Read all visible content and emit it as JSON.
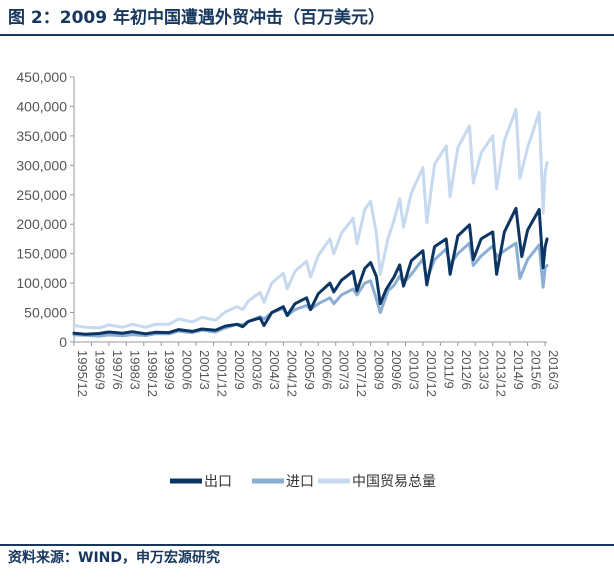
{
  "header": {
    "title": "图 2：2009 年初中国遭遇外贸冲击（百万美元）"
  },
  "footer": {
    "source": "资料来源：WIND，申万宏源研究"
  },
  "colors": {
    "export": "#0d3563",
    "import": "#8aaed4",
    "total": "#c6d9ee",
    "rule": "#17375e"
  },
  "chart_data": {
    "type": "line",
    "title": "2009 年初中国遭遇外贸冲击（百万美元）",
    "xlabel": "",
    "ylabel": "",
    "ylim": [
      0,
      450000
    ],
    "yticks": [
      0,
      50000,
      100000,
      150000,
      200000,
      250000,
      300000,
      350000,
      400000,
      450000
    ],
    "ytick_labels": [
      "0",
      "50,000",
      "100,000",
      "150,000",
      "200,000",
      "250,000",
      "300,000",
      "350,000",
      "400,000",
      "450,000"
    ],
    "x_start": "1995/12",
    "x_end": "2016/4",
    "xtick_labels": [
      "1995/12",
      "1996/9",
      "1997/6",
      "1998/3",
      "1998/12",
      "1999/9",
      "2000/6",
      "2001/3",
      "2001/12",
      "2002/9",
      "2003/6",
      "2004/3",
      "2004/12",
      "2005/9",
      "2006/6",
      "2007/3",
      "2007/12",
      "2008/9",
      "2009/6",
      "2010/3",
      "2010/12",
      "2011/9",
      "2012/6",
      "2013/3",
      "2013/12",
      "2014/9",
      "2015/6",
      "2016/3"
    ],
    "grid": false,
    "legend_position": "bottom",
    "series": [
      {
        "name": "出口",
        "key": "export",
        "points": [
          [
            "1995/12",
            15000
          ],
          [
            "1996/6",
            13000
          ],
          [
            "1997/1",
            14500
          ],
          [
            "1997/6",
            17000
          ],
          [
            "1998/1",
            15000
          ],
          [
            "1998/6",
            17500
          ],
          [
            "1999/1",
            14000
          ],
          [
            "1999/6",
            16500
          ],
          [
            "2000/1",
            16000
          ],
          [
            "2000/6",
            21000
          ],
          [
            "2001/1",
            18000
          ],
          [
            "2001/6",
            22000
          ],
          [
            "2002/1",
            20000
          ],
          [
            "2002/6",
            27000
          ],
          [
            "2002/12",
            30000
          ],
          [
            "2003/3",
            26000
          ],
          [
            "2003/6",
            35000
          ],
          [
            "2003/12",
            41000
          ],
          [
            "2004/2",
            28000
          ],
          [
            "2004/6",
            50000
          ],
          [
            "2004/12",
            60000
          ],
          [
            "2005/2",
            45000
          ],
          [
            "2005/6",
            65000
          ],
          [
            "2005/12",
            75000
          ],
          [
            "2006/2",
            55000
          ],
          [
            "2006/6",
            82000
          ],
          [
            "2006/12",
            100000
          ],
          [
            "2007/2",
            85000
          ],
          [
            "2007/6",
            105000
          ],
          [
            "2007/12",
            120000
          ],
          [
            "2008/2",
            87000
          ],
          [
            "2008/6",
            125000
          ],
          [
            "2008/9",
            135000
          ],
          [
            "2008/12",
            111000
          ],
          [
            "2009/2",
            65000
          ],
          [
            "2009/5",
            89000
          ],
          [
            "2009/9",
            110000
          ],
          [
            "2009/12",
            131000
          ],
          [
            "2010/2",
            95000
          ],
          [
            "2010/6",
            138000
          ],
          [
            "2010/12",
            155000
          ],
          [
            "2011/2",
            97000
          ],
          [
            "2011/6",
            162000
          ],
          [
            "2011/12",
            175000
          ],
          [
            "2012/2",
            115000
          ],
          [
            "2012/6",
            180000
          ],
          [
            "2012/12",
            199000
          ],
          [
            "2013/2",
            140000
          ],
          [
            "2013/6",
            175000
          ],
          [
            "2013/12",
            187000
          ],
          [
            "2014/2",
            115000
          ],
          [
            "2014/6",
            187000
          ],
          [
            "2014/12",
            227000
          ],
          [
            "2015/2",
            170000
          ],
          [
            "2015/3",
            145000
          ],
          [
            "2015/6",
            190000
          ],
          [
            "2015/12",
            225000
          ],
          [
            "2016/2",
            126000
          ],
          [
            "2016/3",
            161000
          ],
          [
            "2016/4",
            175000
          ]
        ]
      },
      {
        "name": "进口",
        "key": "import",
        "points": [
          [
            "1995/12",
            12000
          ],
          [
            "1996/6",
            11500
          ],
          [
            "1997/1",
            10000
          ],
          [
            "1997/6",
            12000
          ],
          [
            "1998/1",
            10500
          ],
          [
            "1998/6",
            12500
          ],
          [
            "1999/1",
            11000
          ],
          [
            "1999/6",
            14000
          ],
          [
            "2000/1",
            14000
          ],
          [
            "2000/6",
            18500
          ],
          [
            "2001/1",
            16000
          ],
          [
            "2001/6",
            20000
          ],
          [
            "2002/1",
            17000
          ],
          [
            "2002/6",
            24000
          ],
          [
            "2002/12",
            30000
          ],
          [
            "2003/3",
            29000
          ],
          [
            "2003/6",
            35000
          ],
          [
            "2003/12",
            43000
          ],
          [
            "2004/2",
            39000
          ],
          [
            "2004/6",
            50000
          ],
          [
            "2004/12",
            57000
          ],
          [
            "2005/2",
            45000
          ],
          [
            "2005/6",
            55000
          ],
          [
            "2005/12",
            62000
          ],
          [
            "2006/2",
            55000
          ],
          [
            "2006/6",
            65000
          ],
          [
            "2006/12",
            75000
          ],
          [
            "2007/2",
            65000
          ],
          [
            "2007/6",
            80000
          ],
          [
            "2007/12",
            90000
          ],
          [
            "2008/2",
            80000
          ],
          [
            "2008/6",
            100000
          ],
          [
            "2008/9",
            104000
          ],
          [
            "2008/12",
            73000
          ],
          [
            "2009/2",
            50000
          ],
          [
            "2009/6",
            87000
          ],
          [
            "2009/9",
            96000
          ],
          [
            "2009/12",
            112000
          ],
          [
            "2010/2",
            100000
          ],
          [
            "2010/6",
            115000
          ],
          [
            "2010/12",
            141000
          ],
          [
            "2011/2",
            106000
          ],
          [
            "2011/6",
            140000
          ],
          [
            "2011/12",
            158000
          ],
          [
            "2012/2",
            132000
          ],
          [
            "2012/6",
            150000
          ],
          [
            "2012/12",
            168000
          ],
          [
            "2013/2",
            130000
          ],
          [
            "2013/6",
            146000
          ],
          [
            "2013/12",
            163000
          ],
          [
            "2014/2",
            145000
          ],
          [
            "2014/6",
            155000
          ],
          [
            "2014/12",
            168000
          ],
          [
            "2015/2",
            108000
          ],
          [
            "2015/6",
            140000
          ],
          [
            "2015/12",
            165000
          ],
          [
            "2016/2",
            93000
          ],
          [
            "2016/3",
            126000
          ],
          [
            "2016/4",
            130000
          ]
        ]
      },
      {
        "name": "中国贸易总量",
        "key": "total",
        "points": [
          [
            "1995/12",
            28000
          ],
          [
            "1996/6",
            25000
          ],
          [
            "1997/1",
            24000
          ],
          [
            "1997/6",
            29000
          ],
          [
            "1998/1",
            25000
          ],
          [
            "1998/6",
            30000
          ],
          [
            "1999/1",
            25000
          ],
          [
            "1999/6",
            30000
          ],
          [
            "2000/1",
            30000
          ],
          [
            "2000/6",
            39000
          ],
          [
            "2001/1",
            34000
          ],
          [
            "2001/6",
            42000
          ],
          [
            "2002/1",
            37000
          ],
          [
            "2002/6",
            51000
          ],
          [
            "2002/12",
            60000
          ],
          [
            "2003/3",
            55000
          ],
          [
            "2003/6",
            70000
          ],
          [
            "2003/12",
            84000
          ],
          [
            "2004/2",
            67000
          ],
          [
            "2004/6",
            100000
          ],
          [
            "2004/12",
            117000
          ],
          [
            "2005/2",
            90000
          ],
          [
            "2005/6",
            120000
          ],
          [
            "2005/12",
            137000
          ],
          [
            "2006/2",
            110000
          ],
          [
            "2006/6",
            147000
          ],
          [
            "2006/12",
            175000
          ],
          [
            "2007/2",
            150000
          ],
          [
            "2007/6",
            185000
          ],
          [
            "2007/12",
            210000
          ],
          [
            "2008/2",
            167000
          ],
          [
            "2008/6",
            225000
          ],
          [
            "2008/9",
            239000
          ],
          [
            "2008/12",
            184000
          ],
          [
            "2009/2",
            115000
          ],
          [
            "2009/6",
            176000
          ],
          [
            "2009/9",
            206000
          ],
          [
            "2009/12",
            243000
          ],
          [
            "2010/2",
            195000
          ],
          [
            "2010/6",
            253000
          ],
          [
            "2010/12",
            296000
          ],
          [
            "2011/2",
            203000
          ],
          [
            "2011/6",
            302000
          ],
          [
            "2011/12",
            333000
          ],
          [
            "2012/2",
            247000
          ],
          [
            "2012/6",
            330000
          ],
          [
            "2012/12",
            367000
          ],
          [
            "2013/2",
            270000
          ],
          [
            "2013/6",
            321000
          ],
          [
            "2013/12",
            350000
          ],
          [
            "2014/2",
            260000
          ],
          [
            "2014/6",
            342000
          ],
          [
            "2014/12",
            395000
          ],
          [
            "2015/2",
            278000
          ],
          [
            "2015/6",
            330000
          ],
          [
            "2015/12",
            390000
          ],
          [
            "2016/2",
            219000
          ],
          [
            "2016/3",
            287000
          ],
          [
            "2016/4",
            305000
          ]
        ]
      }
    ]
  }
}
